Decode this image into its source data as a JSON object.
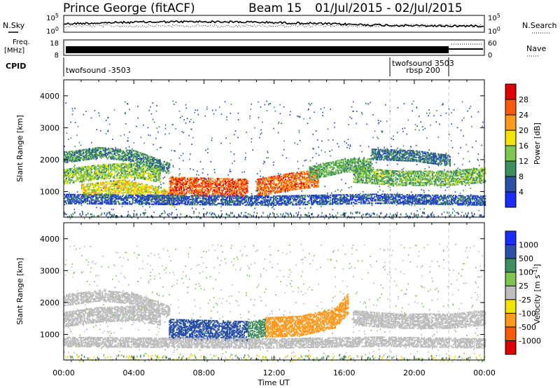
{
  "header": {
    "station": "Prince George (fitACF)",
    "beam": "Beam 15",
    "date_range": "01/Jul/2015 - 02/Jul/2015"
  },
  "strips": {
    "nsky_label": "N.Sky",
    "nsearch_label": "N.Search",
    "noise_ticks": [
      "10^5",
      "10^0"
    ],
    "noise_ticks_right": [
      "10^5",
      "10^0"
    ],
    "freq_label": "Freq.",
    "freq_unit": "[MHz]",
    "freq_ticks": [
      "18",
      "8"
    ],
    "nave_label": "Nave",
    "nave_ticks": [
      "60",
      "0"
    ],
    "cpid_label": "CPID",
    "cpid_segments": [
      {
        "label": "twofsound -3503",
        "start_hour": 0
      },
      {
        "label": "twofsound 3503",
        "start_hour": 18.5
      },
      {
        "label": "rbsp 200",
        "start_hour": 18.5
      }
    ]
  },
  "chart_data": [
    {
      "type": "heatmap",
      "title": "",
      "xlabel": "",
      "ylabel": "Slant Range [km]",
      "xlim_hours": [
        0,
        24
      ],
      "ylim": [
        200,
        4500
      ],
      "yticks": [
        1000,
        2000,
        3000,
        4000
      ],
      "colorbar": {
        "label": "Power [dB]",
        "ticks": [
          4,
          8,
          12,
          16,
          20,
          24,
          28
        ],
        "colors": [
          "#1a2cff",
          "#2a50a8",
          "#3f8e5e",
          "#7ec850",
          "#f4e200",
          "#ff9a1e",
          "#ff5a0a",
          "#e00000"
        ]
      },
      "bands": [
        {
          "t": [
            0.0,
            2.0,
            4.0,
            5.5
          ],
          "range": [
            1450,
            1600,
            1650,
            1500
          ],
          "width": 220,
          "value": 14
        },
        {
          "t": [
            0.0,
            2.0,
            4.0,
            6.0
          ],
          "range": [
            2050,
            2200,
            2100,
            1700
          ],
          "width": 160,
          "value": 10
        },
        {
          "t": [
            1.0,
            3.5,
            5.5,
            6.3
          ],
          "range": [
            1000,
            1150,
            900,
            700
          ],
          "width": 200,
          "value": 18
        },
        {
          "t": [
            6.0,
            8.0,
            10.5
          ],
          "range": [
            1150,
            1120,
            1080
          ],
          "width": 280,
          "value": 26
        },
        {
          "t": [
            11.0,
            13.0,
            14.5
          ],
          "range": [
            1100,
            1300,
            1400
          ],
          "width": 260,
          "value": 25
        },
        {
          "t": [
            14.0,
            16.0,
            17.5
          ],
          "range": [
            1550,
            1800,
            1800
          ],
          "width": 200,
          "value": 12
        },
        {
          "t": [
            16.5,
            19.0,
            22.0,
            24.0
          ],
          "range": [
            1500,
            1400,
            1400,
            1500
          ],
          "width": 220,
          "value": 13
        },
        {
          "t": [
            17.5,
            20.0,
            22.0
          ],
          "range": [
            2150,
            2100,
            1950
          ],
          "width": 160,
          "value": 8
        },
        {
          "t": [
            0.0,
            6.0,
            12.0,
            18.0,
            24.0
          ],
          "range": [
            750,
            720,
            700,
            760,
            700
          ],
          "width": 140,
          "value": 6
        }
      ]
    },
    {
      "type": "heatmap",
      "title": "",
      "xlabel": "Time UT",
      "ylabel": "Slant Range [km]",
      "xlim_hours": [
        0,
        24
      ],
      "ylim": [
        200,
        4500
      ],
      "yticks": [
        1000,
        2000,
        3000,
        4000
      ],
      "xticks": [
        "00:00",
        "04:00",
        "08:00",
        "12:00",
        "16:00",
        "20:00",
        "00:00"
      ],
      "colorbar": {
        "label": "Velocity [m s^-1]",
        "ticks": [
          "1000",
          "500",
          "100",
          "25",
          "-25",
          "-100",
          "-500",
          "-1000"
        ],
        "colors": [
          "#1a2cff",
          "#2a50a8",
          "#3f8e5e",
          "#7ec850",
          "#bdbdbd",
          "#f4e200",
          "#ff9a1e",
          "#ff5a0a",
          "#e00000"
        ]
      },
      "bands": [
        {
          "t": [
            0.0,
            2.0,
            4.0,
            5.5
          ],
          "range": [
            1450,
            1600,
            1650,
            1500
          ],
          "width": 220,
          "value": 0
        },
        {
          "t": [
            0.0,
            2.0,
            4.0,
            6.0
          ],
          "range": [
            2050,
            2200,
            2100,
            1700
          ],
          "width": 160,
          "value": 0
        },
        {
          "t": [
            6.0,
            8.0,
            10.5
          ],
          "range": [
            1150,
            1120,
            1080
          ],
          "width": 300,
          "value": 180
        },
        {
          "t": [
            10.5,
            11.5
          ],
          "range": [
            1100,
            1200
          ],
          "width": 260,
          "value": 60
        },
        {
          "t": [
            11.5,
            13.5,
            15.5,
            16.2
          ],
          "range": [
            1200,
            1250,
            1500,
            1950
          ],
          "width": 300,
          "value": -300
        },
        {
          "t": [
            16.5,
            19.0,
            22.0,
            24.0
          ],
          "range": [
            1500,
            1400,
            1400,
            1500
          ],
          "width": 220,
          "value": 0
        },
        {
          "t": [
            0.0,
            6.0,
            12.0,
            18.0,
            24.0
          ],
          "range": [
            750,
            720,
            700,
            760,
            700
          ],
          "width": 140,
          "value": 0
        }
      ]
    }
  ]
}
